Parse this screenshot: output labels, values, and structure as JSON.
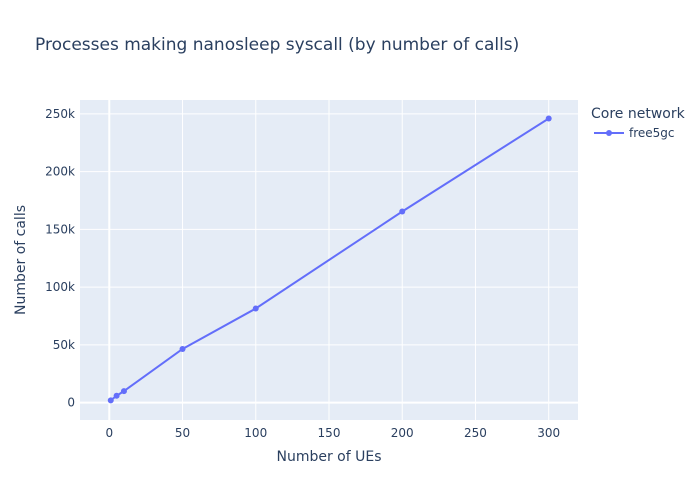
{
  "chart_data": {
    "type": "line",
    "title": "Processes making nanosleep syscall (by number of calls)",
    "xlabel": "Number of UEs",
    "ylabel": "Number of calls",
    "xlim": [
      -20,
      320
    ],
    "ylim": [
      -15000,
      262000
    ],
    "xticks": [
      0,
      50,
      100,
      150,
      200,
      250,
      300
    ],
    "yticks": [
      0,
      50000,
      100000,
      150000,
      200000,
      250000
    ],
    "xtick_labels": [
      "0",
      "50",
      "100",
      "150",
      "200",
      "250",
      "300"
    ],
    "ytick_labels": [
      "0",
      "50k",
      "100k",
      "150k",
      "200k",
      "250k"
    ],
    "grid": true,
    "legend": {
      "title": "Core network",
      "placement": "right"
    },
    "series": [
      {
        "name": "free5gc",
        "color": "#636efa",
        "x": [
          1,
          5,
          10,
          50,
          100,
          200,
          300
        ],
        "y": [
          2000,
          6000,
          10000,
          46500,
          81500,
          165500,
          246000
        ]
      }
    ]
  },
  "colors": {
    "plot_bg": "#e5ecf6",
    "grid": "#ffffff",
    "text": "#2a3f5f"
  }
}
